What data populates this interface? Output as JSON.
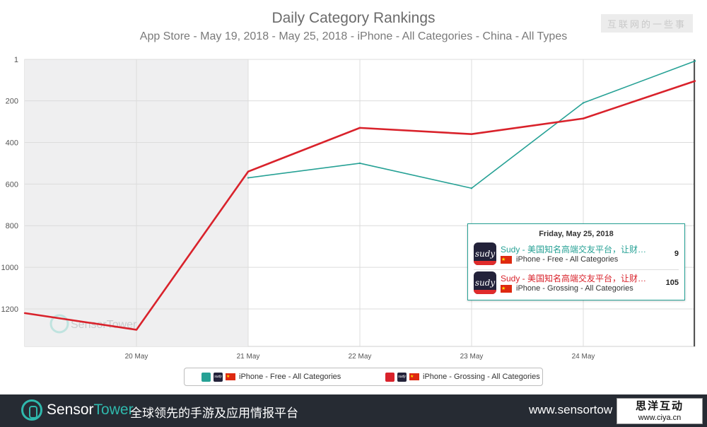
{
  "watermark_top": "互联网的一些事",
  "tooltip": {
    "date": "Friday, May 25, 2018",
    "rows": [
      {
        "app_icon": "sudy",
        "name": "Sudy - 美国知名高端交友平台，让财…",
        "type": "iPhone - Free - All Categories",
        "value": "9"
      },
      {
        "app_icon": "sudy",
        "name": "Sudy - 美国知名高端交友平台，让财…",
        "type": "iPhone - Grossing - All Categories",
        "value": "105"
      }
    ]
  },
  "legend": {
    "free_label": "iPhone - Free - All Categories",
    "grossing_label": "iPhone - Grossing - All Categories"
  },
  "footer": {
    "brand_a": "Sensor",
    "brand_b": "Tower",
    "tagline": "全球领先的手游及应用情报平台",
    "url": "www.sensortow"
  },
  "stamp": {
    "line1": "思洋互动",
    "line2": "www.ciya.cn"
  },
  "chart_watermark": "SensorTower",
  "colors": {
    "free": "#26a195",
    "grossing": "#d9222b",
    "grid": "#dcdcdc",
    "shaded": "#efeff0"
  },
  "chart_data": {
    "type": "line",
    "title": "Daily Category Rankings",
    "subtitle": "App Store - May 19, 2018 - May 25, 2018 - iPhone - All Categories - China - All Types",
    "x_ticks": [
      "20 May",
      "21 May",
      "22 May",
      "23 May",
      "24 May"
    ],
    "y_ticks": [
      "1",
      "200",
      "400",
      "600",
      "800",
      "1000",
      "1200"
    ],
    "y_reversed": true,
    "ylim": [
      1,
      1380
    ],
    "xlim": [
      "May 19, 2018",
      "May 25, 2018"
    ],
    "grid": true,
    "shaded_range": [
      "May 19, 2018",
      "May 21, 2018"
    ],
    "legend_position": "bottom",
    "series": [
      {
        "key": "free",
        "name": "iPhone - Free - All Categories",
        "x": [
          "May 21, 2018",
          "May 22, 2018",
          "May 23, 2018",
          "May 24, 2018",
          "May 25, 2018"
        ],
        "values": [
          570,
          500,
          620,
          210,
          9
        ]
      },
      {
        "key": "grossing",
        "name": "iPhone - Grossing - All Categories",
        "x": [
          "May 19, 2018",
          "May 20, 2018",
          "May 21, 2018",
          "May 22, 2018",
          "May 23, 2018",
          "May 24, 2018",
          "May 25, 2018"
        ],
        "values": [
          1220,
          1300,
          540,
          330,
          360,
          285,
          105
        ]
      }
    ]
  }
}
